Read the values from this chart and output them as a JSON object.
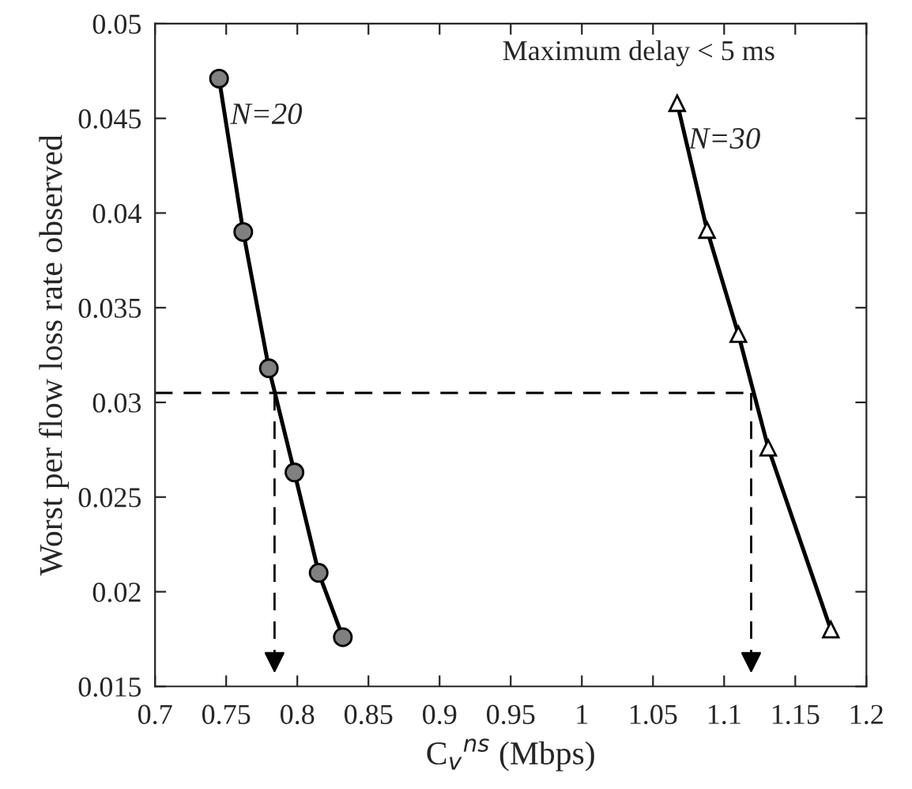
{
  "chart_data": {
    "type": "line",
    "xlabel": "C$_{v}$$^{ns}$ (Mbps)",
    "ylabel": "Worst per flow loss rate observed",
    "annotations": [
      "Maximum delay < 5 ms"
    ],
    "series": [
      {
        "name": "N=20",
        "color": "#000000",
        "marker": "circle",
        "x": [
          0.745,
          0.762,
          0.78,
          0.798,
          0.815,
          0.832
        ],
        "values": [
          0.0471,
          0.039,
          0.0318,
          0.0263,
          0.021,
          0.0176
        ]
      },
      {
        "name": "N=30",
        "color": "#000000",
        "marker": "triangle",
        "x": [
          1.067,
          1.088,
          1.11,
          1.131,
          1.175
        ],
        "values": [
          0.0458,
          0.0391,
          0.0336,
          0.0276,
          0.018
        ]
      }
    ],
    "ref_lines": [
      {
        "axis": "y",
        "value": 0.0305,
        "line_style": "dashed"
      },
      {
        "axis": "x",
        "value": 0.784,
        "line_style": "dashed"
      },
      {
        "axis": "x",
        "value": 1.119,
        "line_style": "dashed"
      }
    ],
    "xlim": [
      0.7,
      1.2
    ],
    "xticks": [
      0.7,
      0.75,
      0.8,
      0.85,
      0.9,
      0.95,
      1,
      1.05,
      1.1,
      1.15,
      1.2
    ],
    "ylim": [
      0.015,
      0.05
    ],
    "yticks": [
      0.015,
      0.02,
      0.025,
      0.03,
      0.035,
      0.04,
      0.045,
      0.05
    ],
    "grid": false,
    "legend": false
  }
}
